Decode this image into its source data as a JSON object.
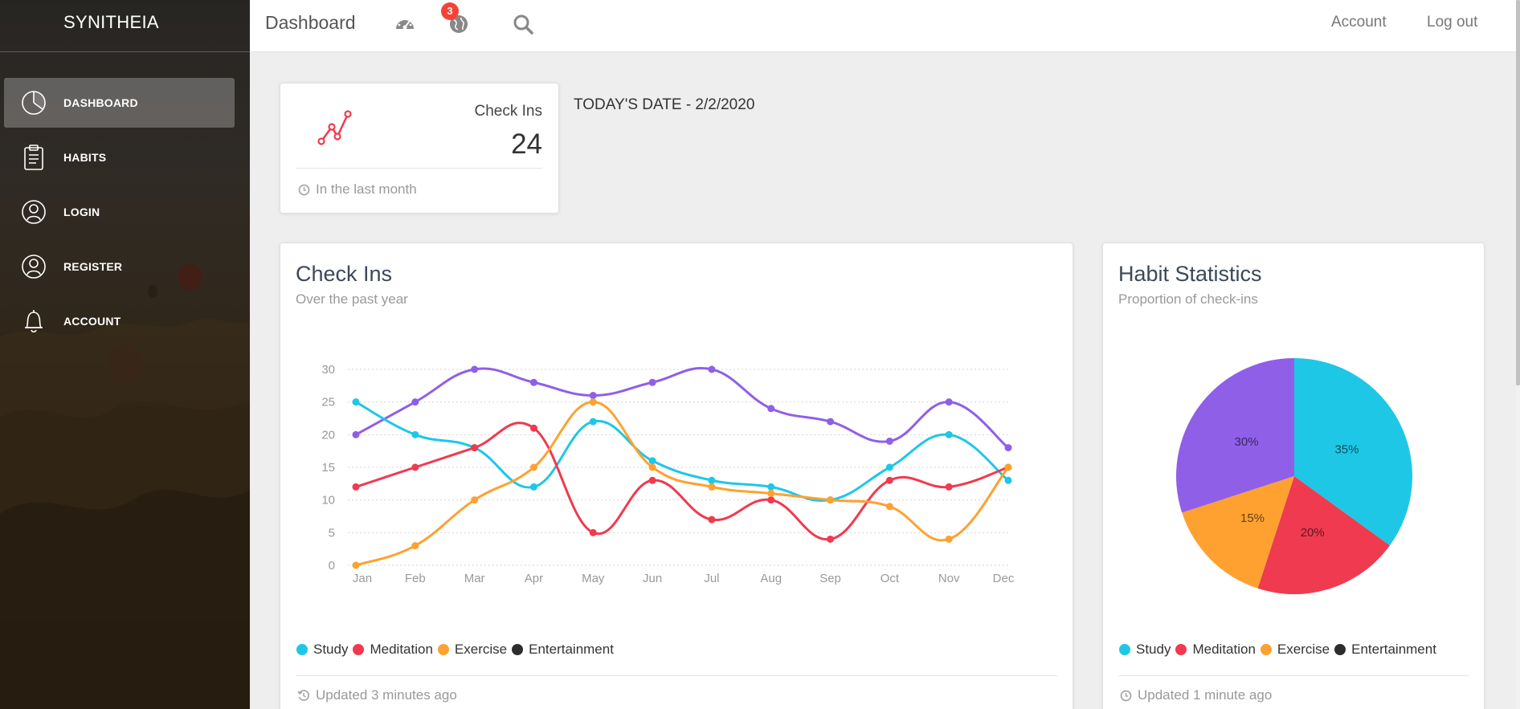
{
  "app": {
    "brand": "SYNITHEIA"
  },
  "sidebar": {
    "items": [
      {
        "label": "DASHBOARD",
        "icon": "pie-chart-icon",
        "active": true
      },
      {
        "label": "HABITS",
        "icon": "clipboard-icon",
        "active": false
      },
      {
        "label": "LOGIN",
        "icon": "user-icon",
        "active": false
      },
      {
        "label": "REGISTER",
        "icon": "user-icon",
        "active": false
      },
      {
        "label": "ACCOUNT",
        "icon": "bell-icon",
        "active": false
      }
    ]
  },
  "topbar": {
    "title": "Dashboard",
    "notification_count": "3",
    "account_label": "Account",
    "logout_label": "Log out"
  },
  "stat_card": {
    "title": "Check Ins",
    "value": "24",
    "footer": "In the last month"
  },
  "today": "TODAY'S DATE - 2/2/2020",
  "line_card": {
    "title": "Check Ins",
    "subtitle": "Over the past year",
    "footer": "Updated 3 minutes ago"
  },
  "pie_card": {
    "title": "Habit Statistics",
    "subtitle": "Proportion of check-ins",
    "footer": "Updated 1 minute ago"
  },
  "legend": [
    {
      "name": "Study",
      "color": "#1ec7e6"
    },
    {
      "name": "Meditation",
      "color": "#f03a4f"
    },
    {
      "name": "Exercise",
      "color": "#fea131"
    },
    {
      "name": "Entertainment",
      "color": "#2d2d2d"
    }
  ],
  "chart_data": [
    {
      "type": "line",
      "categories": [
        "Jan",
        "Feb",
        "Mar",
        "Apr",
        "May",
        "Jun",
        "Jul",
        "Aug",
        "Sep",
        "Oct",
        "Nov",
        "Dec"
      ],
      "ylim": [
        0,
        30
      ],
      "yticks": [
        0,
        5,
        10,
        15,
        20,
        25,
        30
      ],
      "grid": true,
      "series": [
        {
          "name": "Study",
          "color": "#1ec7e6",
          "values": [
            25,
            20,
            18,
            12,
            22,
            16,
            13,
            12,
            10,
            15,
            20,
            13
          ]
        },
        {
          "name": "Meditation",
          "color": "#f03a4f",
          "values": [
            12,
            15,
            18,
            21,
            5,
            13,
            7,
            10,
            4,
            13,
            12,
            15
          ]
        },
        {
          "name": "Exercise",
          "color": "#fea131",
          "values": [
            0,
            3,
            10,
            15,
            25,
            15,
            12,
            11,
            10,
            9,
            4,
            15
          ]
        },
        {
          "color": "#8f5fe8",
          "values": [
            20,
            25,
            30,
            28,
            26,
            28,
            30,
            24,
            22,
            19,
            25,
            18
          ]
        }
      ]
    },
    {
      "type": "pie",
      "slices": [
        {
          "label": "35%",
          "value": 35,
          "color": "#1ec7e6"
        },
        {
          "label": "20%",
          "value": 20,
          "color": "#f03a4f"
        },
        {
          "label": "15%",
          "value": 15,
          "color": "#fea131"
        },
        {
          "label": "30%",
          "value": 30,
          "color": "#8f5fe8"
        }
      ]
    }
  ]
}
